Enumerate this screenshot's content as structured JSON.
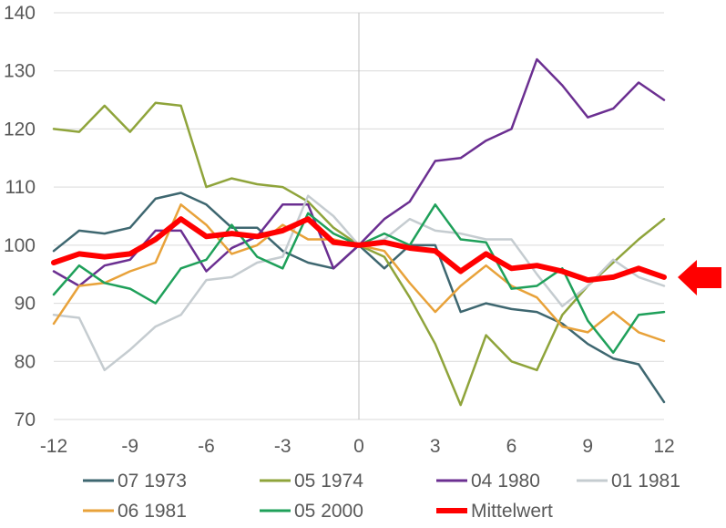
{
  "chart_data": {
    "type": "line",
    "x": [
      -12,
      -11,
      -10,
      -9,
      -8,
      -7,
      -6,
      -5,
      -4,
      -3,
      -2,
      -1,
      0,
      1,
      2,
      3,
      4,
      5,
      6,
      7,
      8,
      9,
      10,
      11,
      12
    ],
    "x_ticks": [
      -12,
      -9,
      -6,
      -3,
      0,
      3,
      6,
      9,
      12
    ],
    "y_ticks": [
      70,
      80,
      90,
      100,
      110,
      120,
      130,
      140
    ],
    "xlim": [
      -12,
      12
    ],
    "ylim": [
      70,
      140
    ],
    "grid": "horizontal",
    "legend": "bottom",
    "series": [
      {
        "name": "07 1973",
        "color": "#3e6770",
        "width": 2.5,
        "values": [
          99,
          102.5,
          102,
          103,
          108,
          109,
          107,
          103,
          103,
          99,
          97,
          96,
          100,
          96,
          100,
          100,
          88.5,
          90,
          89,
          88.5,
          86.5,
          83,
          80.5,
          79.5,
          73
        ]
      },
      {
        "name": "05 1974",
        "color": "#8fa43b",
        "width": 2.5,
        "values": [
          120,
          119.5,
          124,
          119.5,
          124.5,
          124,
          110,
          111.5,
          110.5,
          110,
          107.5,
          103,
          100,
          98,
          91,
          83,
          72.5,
          84.5,
          80,
          78.5,
          88,
          93,
          97,
          101,
          104.5
        ]
      },
      {
        "name": "04 1980",
        "color": "#6b2f91",
        "width": 2.5,
        "values": [
          95.5,
          93,
          96.5,
          97.5,
          102.5,
          102.5,
          95.5,
          99.5,
          101.5,
          107,
          107,
          96,
          100,
          104.5,
          107.5,
          114.5,
          115,
          118,
          120,
          132,
          127.5,
          122,
          123.5,
          128,
          125
        ]
      },
      {
        "name": "01 1981",
        "color": "#c5ccd0",
        "width": 2.5,
        "values": [
          88,
          87.5,
          78.5,
          82,
          86,
          88,
          94,
          94.5,
          97,
          98,
          108.5,
          105,
          100,
          101,
          104.5,
          102.5,
          102,
          101,
          101,
          95,
          89.5,
          93,
          97.5,
          94.5,
          93
        ]
      },
      {
        "name": "06 1981",
        "color": "#e8a23a",
        "width": 2.5,
        "values": [
          86.5,
          93,
          93.5,
          95.5,
          97,
          107,
          103.5,
          98.5,
          100,
          103.5,
          101,
          101,
          100,
          99,
          93.5,
          88.5,
          93,
          96.5,
          93,
          91,
          86,
          85,
          88.5,
          85,
          83.5
        ]
      },
      {
        "name": "05 2000",
        "color": "#1fa05a",
        "width": 2.5,
        "values": [
          91.5,
          96.5,
          93.5,
          92.5,
          90,
          96,
          97.5,
          103.5,
          98,
          96,
          105.5,
          102,
          100,
          102,
          100,
          107,
          101,
          100.5,
          92.5,
          93,
          96,
          87,
          81.5,
          88,
          88.5
        ]
      },
      {
        "name": "Mittelwert",
        "color": "#ff0000",
        "width": 6,
        "values": [
          97,
          98.5,
          98,
          98.5,
          101,
          104.5,
          101.5,
          102,
          101.5,
          102.5,
          104.5,
          100.5,
          100,
          100.5,
          99.5,
          99,
          95.5,
          98.5,
          96,
          96.5,
          95.5,
          94,
          94.5,
          96,
          94.5
        ]
      }
    ]
  }
}
